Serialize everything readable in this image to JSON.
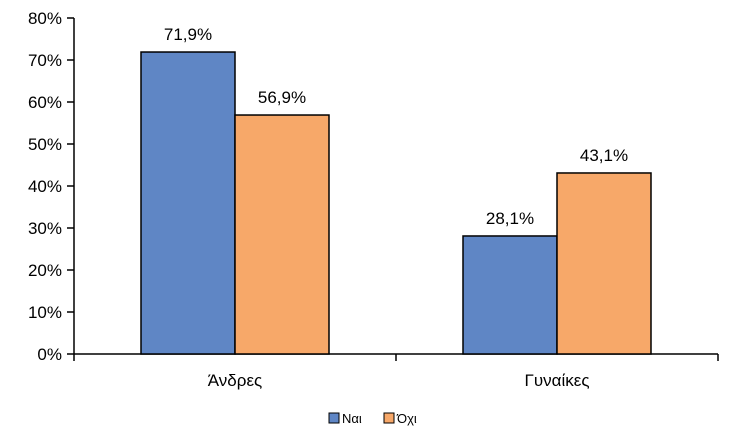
{
  "chart_data": {
    "type": "bar",
    "categories": [
      "Άνδρες",
      "Γυναίκες"
    ],
    "series": [
      {
        "name": "Ναι",
        "values": [
          71.9,
          28.1
        ],
        "labels": [
          "71,9%",
          "28,1%"
        ],
        "color": "#5F86C5"
      },
      {
        "name": "Όχι",
        "values": [
          56.9,
          43.1
        ],
        "labels": [
          "56,9%",
          "43,1%"
        ],
        "color": "#F7A869"
      }
    ],
    "ylim": [
      0,
      80
    ],
    "yticks": [
      {
        "value": 0,
        "label": "0%"
      },
      {
        "value": 10,
        "label": "10%"
      },
      {
        "value": 20,
        "label": "20%"
      },
      {
        "value": 30,
        "label": "30%"
      },
      {
        "value": 40,
        "label": "40%"
      },
      {
        "value": 50,
        "label": "50%"
      },
      {
        "value": 60,
        "label": "60%"
      },
      {
        "value": 70,
        "label": "70%"
      },
      {
        "value": 80,
        "label": "80%"
      }
    ],
    "grid": false,
    "legend_position": "bottom-center",
    "title": "",
    "xlabel": "",
    "ylabel": ""
  }
}
